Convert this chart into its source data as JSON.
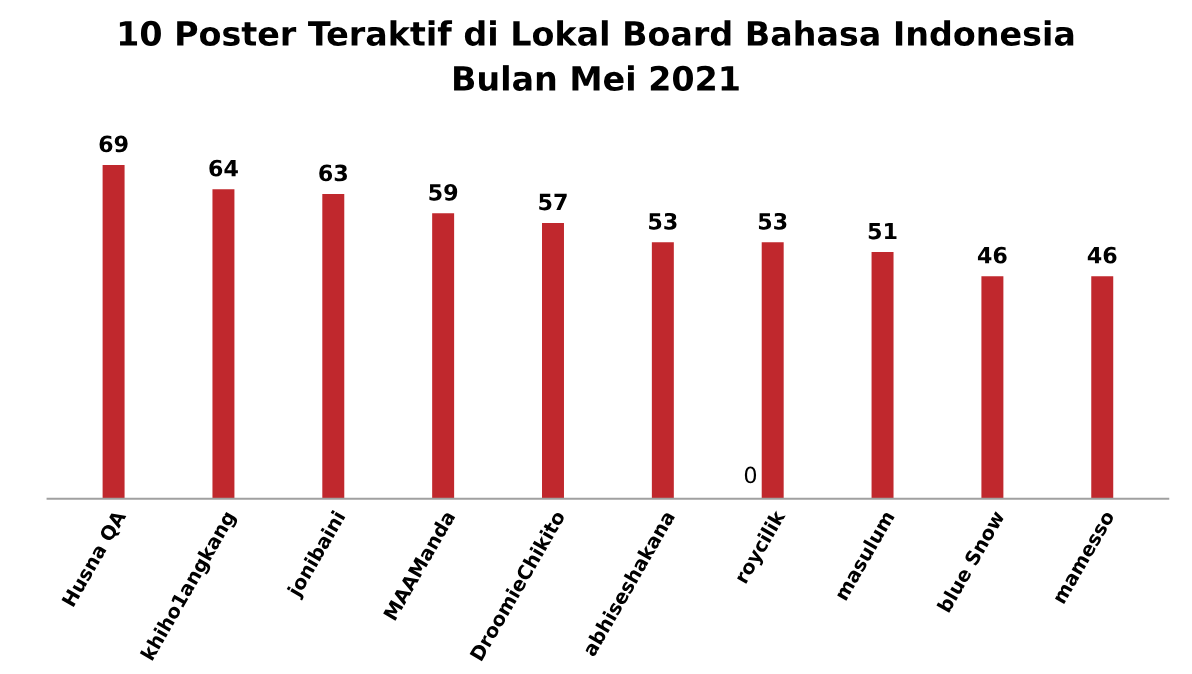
{
  "chart_data": {
    "type": "bar",
    "title": "10 Poster Teraktif di Lokal Board Bahasa Indonesia\nBulan Mei 2021",
    "categories": [
      "Husna QA",
      "khiho1angkang",
      "jonibaini",
      "MAAManda",
      "DroomieChikito",
      "abhiseshakana",
      "roycilik",
      "masulum",
      "blue Snow",
      "mamesso"
    ],
    "values": [
      69,
      64,
      63,
      59,
      57,
      53,
      53,
      51,
      46,
      46
    ],
    "color": "#c0282d",
    "data_labels": true,
    "annotations": [
      {
        "text": "0",
        "x": "roycilik",
        "y": 0
      }
    ]
  }
}
